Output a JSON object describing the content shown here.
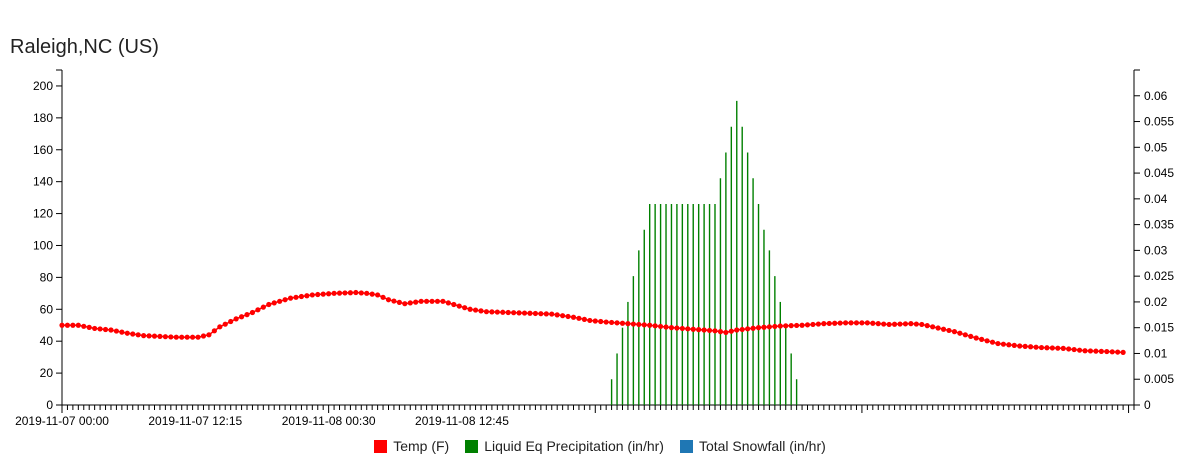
{
  "title": "Raleigh,NC (US)",
  "legend": [
    {
      "label": "Temp (F)",
      "color": "#ff0000"
    },
    {
      "label": "Liquid Eq Precipitation (in/hr)",
      "color": "#008000"
    },
    {
      "label": "Total Snowfall (in/hr)",
      "color": "#1f77b4"
    }
  ],
  "chart_data": {
    "type": "line",
    "title": "Raleigh,NC (US)",
    "x_unit": "hours",
    "x_start": "2019-11-07 00:00",
    "x_end": "2019-11-09 00:30",
    "x_tick_labels": [
      "2019-11-07 00:00",
      "2019-11-07 12:15",
      "2019-11-08 00:30",
      "2019-11-08 12:45"
    ],
    "y_left": {
      "ylim": [
        0,
        210
      ],
      "ticks": [
        0,
        20,
        40,
        60,
        80,
        100,
        120,
        140,
        160,
        180,
        200
      ]
    },
    "y_right": {
      "ylim": [
        0,
        0.065
      ],
      "ticks": [
        0,
        0.005,
        0.01,
        0.015,
        0.02,
        0.025,
        0.03,
        0.035,
        0.04,
        0.045,
        0.05,
        0.055,
        0.06
      ]
    },
    "series": [
      {
        "name": "Temp (F)",
        "axis": "left",
        "color": "#ff0000",
        "points": [
          [
            0,
            50
          ],
          [
            1.5,
            50
          ],
          [
            3,
            48
          ],
          [
            4.5,
            47
          ],
          [
            6,
            45
          ],
          [
            7.5,
            43.5
          ],
          [
            9,
            43
          ],
          [
            10.5,
            42.5
          ],
          [
            12.5,
            42.5
          ],
          [
            13.5,
            44
          ],
          [
            14.5,
            49
          ],
          [
            16,
            54
          ],
          [
            17.5,
            58
          ],
          [
            19,
            63
          ],
          [
            21,
            67
          ],
          [
            23,
            69
          ],
          [
            25,
            70
          ],
          [
            27,
            70.5
          ],
          [
            28,
            70
          ],
          [
            29,
            69
          ],
          [
            30,
            66
          ],
          [
            31.5,
            63.5
          ],
          [
            33,
            65
          ],
          [
            35,
            65
          ],
          [
            36,
            63
          ],
          [
            37.5,
            60
          ],
          [
            39,
            58.5
          ],
          [
            41,
            58
          ],
          [
            43,
            57.5
          ],
          [
            45,
            57
          ],
          [
            47,
            55
          ],
          [
            48.5,
            53
          ],
          [
            50,
            52
          ],
          [
            52,
            51
          ],
          [
            54,
            50
          ],
          [
            56,
            48.5
          ],
          [
            58,
            47.5
          ],
          [
            60,
            46.5
          ],
          [
            61,
            45.5
          ],
          [
            62,
            47
          ],
          [
            64,
            48.5
          ],
          [
            66,
            49.5
          ],
          [
            68,
            50
          ],
          [
            70,
            51
          ],
          [
            72,
            51.5
          ],
          [
            74,
            51.5
          ],
          [
            76,
            50.5
          ],
          [
            78,
            51
          ],
          [
            79,
            50.5
          ],
          [
            80,
            49
          ],
          [
            82,
            46
          ],
          [
            84,
            42
          ],
          [
            86,
            38.5
          ],
          [
            88,
            37
          ],
          [
            90,
            36
          ],
          [
            92,
            35.5
          ],
          [
            94,
            34
          ],
          [
            96,
            33.5
          ],
          [
            97.5,
            33
          ]
        ]
      },
      {
        "name": "Liquid Eq Precipitation (in/hr)",
        "axis": "right",
        "color": "#008000",
        "points": [
          [
            50.5,
            0.005
          ],
          [
            51,
            0.01
          ],
          [
            51.5,
            0.015
          ],
          [
            52,
            0.02
          ],
          [
            52.5,
            0.025
          ],
          [
            53,
            0.03
          ],
          [
            53.5,
            0.034
          ],
          [
            54,
            0.039
          ],
          [
            54.5,
            0.039
          ],
          [
            55,
            0.039
          ],
          [
            55.5,
            0.039
          ],
          [
            56,
            0.039
          ],
          [
            56.5,
            0.039
          ],
          [
            57,
            0.039
          ],
          [
            57.5,
            0.039
          ],
          [
            58,
            0.039
          ],
          [
            58.5,
            0.039
          ],
          [
            59,
            0.039
          ],
          [
            59.5,
            0.039
          ],
          [
            60,
            0.039
          ],
          [
            60.5,
            0.044
          ],
          [
            61,
            0.049
          ],
          [
            61.5,
            0.054
          ],
          [
            62,
            0.059
          ],
          [
            62.5,
            0.054
          ],
          [
            63,
            0.049
          ],
          [
            63.5,
            0.044
          ],
          [
            64,
            0.039
          ],
          [
            64.5,
            0.034
          ],
          [
            65,
            0.03
          ],
          [
            65.5,
            0.025
          ],
          [
            66,
            0.02
          ],
          [
            66.5,
            0.015
          ],
          [
            67,
            0.01
          ],
          [
            67.5,
            0.005
          ]
        ]
      },
      {
        "name": "Total Snowfall (in/hr)",
        "axis": "right",
        "color": "#1f77b4",
        "points": []
      }
    ]
  }
}
